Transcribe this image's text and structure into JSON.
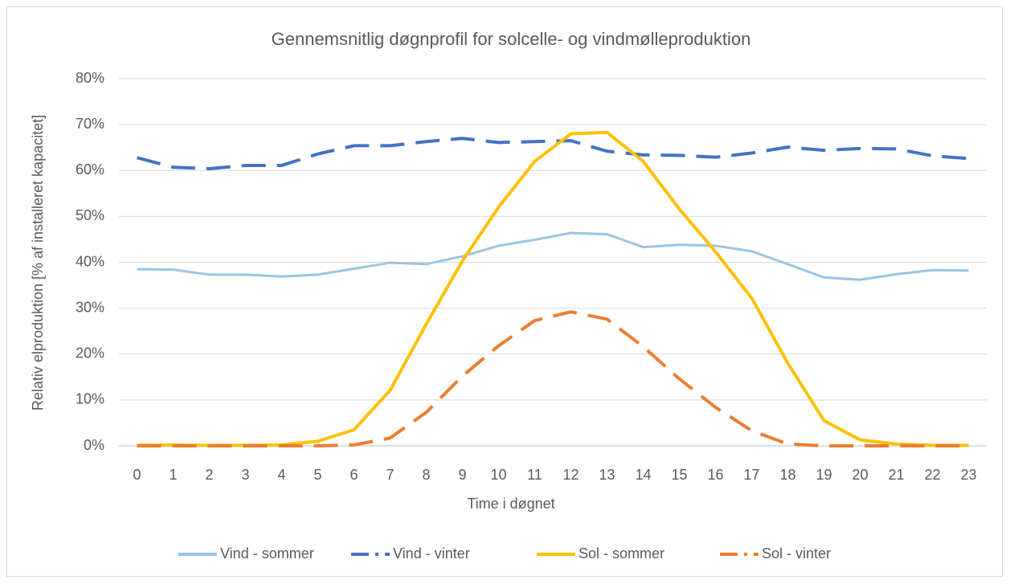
{
  "chart_data": {
    "type": "line",
    "title": "Gennemsnitlig døgnprofil for solcelle- og vindmølleproduktion",
    "x_label": "Time i døgnet",
    "y_label": "Relativ elproduktion [% af installeret kapacitet]",
    "categories": [
      0,
      1,
      2,
      3,
      4,
      5,
      6,
      7,
      8,
      9,
      10,
      11,
      12,
      13,
      14,
      15,
      16,
      17,
      18,
      19,
      20,
      21,
      22,
      23
    ],
    "ylim": [
      0,
      80
    ],
    "yticks": [
      {
        "value": 0,
        "label": "0%"
      },
      {
        "value": 10,
        "label": "10%"
      },
      {
        "value": 20,
        "label": "20%"
      },
      {
        "value": 30,
        "label": "30%"
      },
      {
        "value": 40,
        "label": "40%"
      },
      {
        "value": 50,
        "label": "50%"
      },
      {
        "value": 60,
        "label": "60%"
      },
      {
        "value": 70,
        "label": "70%"
      },
      {
        "value": 80,
        "label": "80%"
      }
    ],
    "grid": true,
    "legend": "bottom",
    "series": [
      {
        "name": "Vind - sommer",
        "color": "#9dc3e6",
        "dashed": false,
        "values": [
          38.5,
          38.4,
          37.3,
          37.3,
          36.9,
          37.3,
          38.6,
          39.9,
          39.6,
          41.3,
          43.6,
          44.9,
          46.4,
          46.1,
          43.3,
          43.8,
          43.6,
          42.4,
          39.6,
          36.7,
          36.2,
          37.4,
          38.3,
          38.2
        ]
      },
      {
        "name": "Vind - vinter",
        "color": "#4472c4",
        "dashed": true,
        "values": [
          62.8,
          60.7,
          60.4,
          61.1,
          61.1,
          63.6,
          65.4,
          65.4,
          66.3,
          67.0,
          66.1,
          66.3,
          66.5,
          64.2,
          63.4,
          63.3,
          62.9,
          63.8,
          65.1,
          64.4,
          64.8,
          64.7,
          63.2,
          62.6
        ]
      },
      {
        "name": "Sol - sommer",
        "color": "#ffc000",
        "dashed": false,
        "values": [
          0.1,
          0.2,
          0.1,
          0.1,
          0.2,
          1.0,
          3.5,
          12.1,
          26.5,
          40.3,
          52.0,
          62.0,
          68.0,
          68.3,
          62.0,
          51.6,
          42.3,
          32.2,
          18.0,
          5.5,
          1.3,
          0.4,
          0.1,
          0.1
        ]
      },
      {
        "name": "Sol - vinter",
        "color": "#ed7d31",
        "dashed": true,
        "values": [
          0,
          0,
          0,
          0,
          0,
          0,
          0.2,
          1.7,
          7.3,
          15.2,
          21.8,
          27.3,
          29.2,
          27.6,
          21.6,
          14.6,
          8.4,
          3.3,
          0.4,
          0,
          0,
          0,
          0,
          0
        ]
      }
    ]
  }
}
